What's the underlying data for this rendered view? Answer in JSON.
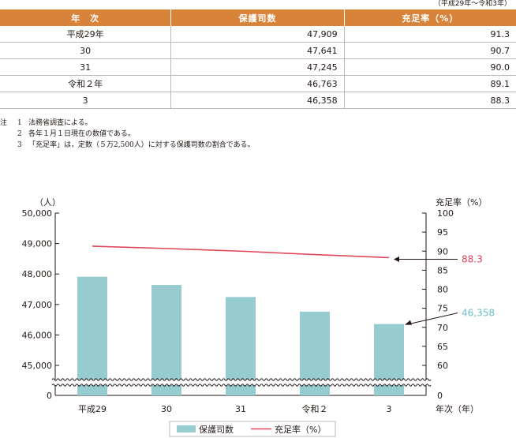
{
  "period_note": "（平成29年～令和3年）",
  "table": {
    "headers": [
      "年　次",
      "保護司数",
      "充足率（%）"
    ],
    "rows": [
      [
        "平成29年",
        "47,909",
        "91.3"
      ],
      [
        "30",
        "47,641",
        "90.7"
      ],
      [
        "31",
        "47,245",
        "90.0"
      ],
      [
        "令和２年",
        "46,763",
        "89.1"
      ],
      [
        "3",
        "46,358",
        "88.3"
      ]
    ]
  },
  "notes": {
    "label": "注",
    "items": [
      {
        "n": "1",
        "text": "法務省調査による。"
      },
      {
        "n": "2",
        "text": "各年１月１日現在の数値である。"
      },
      {
        "n": "3",
        "text": "「充足率」は，定数（５万2,500人）に対する保護司数の割合である。"
      }
    ]
  },
  "chart_data": {
    "type": "bar",
    "categories": [
      "平成29",
      "30",
      "31",
      "令和２",
      "3"
    ],
    "series": [
      {
        "name": "保護司数",
        "type": "bar",
        "axis": "left",
        "values": [
          47909,
          47641,
          47245,
          46763,
          46358
        ],
        "color": "#96cbcf"
      },
      {
        "name": "充足率（%）",
        "type": "line",
        "axis": "right",
        "values": [
          91.3,
          90.7,
          90.0,
          89.1,
          88.3
        ],
        "color": "#e0455a"
      }
    ],
    "ylabel_left": "（人）",
    "ylabel_right": "充足率（%）",
    "xlabel": "年次（年）",
    "left_ticks": [
      "50,000",
      "49,000",
      "48,000",
      "47,000",
      "46,000",
      "45,000",
      "0"
    ],
    "left_tick_values": [
      50000,
      49000,
      48000,
      47000,
      46000,
      45000,
      0
    ],
    "right_ticks": [
      "100",
      "95",
      "90",
      "85",
      "80",
      "75",
      "70",
      "65",
      "60",
      "0"
    ],
    "right_tick_values": [
      100,
      95,
      90,
      85,
      80,
      75,
      70,
      65,
      60,
      0
    ],
    "ylim_left": [
      45000,
      50000
    ],
    "ylim_right": [
      60,
      100
    ],
    "axis_break": true,
    "callouts": [
      {
        "label": "88.3",
        "color": "#e0455a"
      },
      {
        "label": "46,358",
        "color": "#6cbec8"
      }
    ],
    "legend_position": "bottom"
  }
}
